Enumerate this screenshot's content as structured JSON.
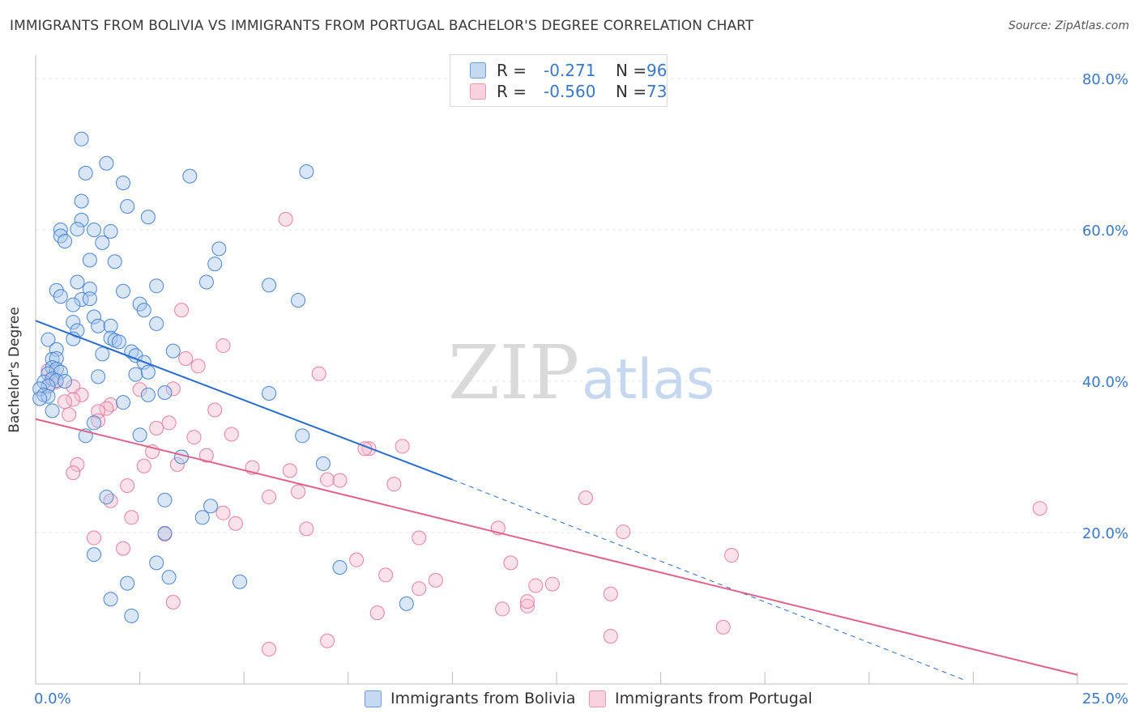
{
  "title": "IMMIGRANTS FROM BOLIVIA VS IMMIGRANTS FROM PORTUGAL BACHELOR'S DEGREE CORRELATION CHART",
  "source": "Source: ZipAtlas.com",
  "watermark": {
    "zip": "ZIP",
    "atlas": "atlas"
  },
  "colors": {
    "bolivia_fill": "#a9c8ef",
    "bolivia_stroke": "#4a86d4",
    "bolivia_line": "#2a6ccc",
    "portugal_fill": "#f6bfd0",
    "portugal_stroke": "#e87fa2",
    "portugal_line": "#e0628c",
    "axis_label": "#3a78c9",
    "grid": "#e4e4e4"
  },
  "legend": {
    "rows": [
      {
        "r_label": "R =",
        "r_value": "-0.271",
        "n_label": "N =",
        "n_value": "96"
      },
      {
        "r_label": "R =",
        "r_value": "-0.560",
        "n_label": "N =",
        "n_value": "73"
      }
    ]
  },
  "chart_data": {
    "type": "scatter",
    "title": "IMMIGRANTS FROM BOLIVIA VS IMMIGRANTS FROM PORTUGAL BACHELOR'S DEGREE CORRELATION CHART",
    "xlabel": "",
    "ylabel": "Bachelor's Degree",
    "xlim": [
      0,
      25
    ],
    "ylim": [
      0,
      80
    ],
    "x_tick_labels": [
      "0.0%",
      "25.0%"
    ],
    "y_ticks": [
      20,
      40,
      60,
      80
    ],
    "y_tick_labels": [
      "20.0%",
      "40.0%",
      "60.0%",
      "80.0%"
    ],
    "grid": true,
    "legend_position": "bottom",
    "series": [
      {
        "name": "Immigrants from Bolivia",
        "r": -0.271,
        "n": 96,
        "trend": {
          "x": [
            0.0,
            10.0
          ],
          "y": [
            48.0,
            27.0
          ],
          "dashed_to": [
            22.3,
            0.5
          ]
        },
        "points": [
          [
            1.1,
            72.0
          ],
          [
            1.7,
            68.8
          ],
          [
            1.2,
            67.5
          ],
          [
            2.1,
            66.2
          ],
          [
            3.7,
            67.1
          ],
          [
            6.5,
            67.7
          ],
          [
            1.1,
            63.8
          ],
          [
            2.2,
            63.1
          ],
          [
            2.7,
            61.7
          ],
          [
            1.1,
            61.3
          ],
          [
            0.6,
            60.0
          ],
          [
            0.6,
            59.2
          ],
          [
            1.0,
            60.1
          ],
          [
            1.4,
            60.0
          ],
          [
            1.8,
            59.8
          ],
          [
            0.7,
            58.5
          ],
          [
            1.6,
            58.3
          ],
          [
            4.4,
            57.5
          ],
          [
            1.3,
            56.0
          ],
          [
            1.9,
            55.8
          ],
          [
            4.3,
            55.5
          ],
          [
            4.1,
            53.1
          ],
          [
            5.6,
            52.7
          ],
          [
            2.9,
            52.6
          ],
          [
            0.5,
            52.0
          ],
          [
            1.0,
            53.1
          ],
          [
            1.3,
            52.2
          ],
          [
            2.1,
            51.9
          ],
          [
            0.6,
            51.2
          ],
          [
            1.1,
            50.8
          ],
          [
            1.3,
            50.9
          ],
          [
            6.3,
            50.7
          ],
          [
            2.5,
            50.2
          ],
          [
            0.9,
            50.1
          ],
          [
            2.6,
            49.4
          ],
          [
            1.4,
            48.5
          ],
          [
            0.9,
            47.8
          ],
          [
            1.5,
            47.3
          ],
          [
            1.8,
            47.3
          ],
          [
            2.9,
            47.6
          ],
          [
            1.0,
            46.7
          ],
          [
            0.3,
            45.5
          ],
          [
            0.9,
            45.6
          ],
          [
            1.8,
            45.7
          ],
          [
            1.9,
            45.4
          ],
          [
            2.0,
            45.2
          ],
          [
            0.5,
            44.2
          ],
          [
            2.3,
            43.9
          ],
          [
            1.6,
            43.6
          ],
          [
            3.3,
            44.0
          ],
          [
            2.4,
            43.4
          ],
          [
            0.4,
            42.9
          ],
          [
            0.5,
            43.0
          ],
          [
            2.6,
            42.5
          ],
          [
            0.4,
            41.8
          ],
          [
            0.5,
            41.6
          ],
          [
            0.3,
            41.0
          ],
          [
            0.6,
            41.2
          ],
          [
            2.4,
            40.9
          ],
          [
            2.7,
            41.2
          ],
          [
            1.5,
            40.6
          ],
          [
            0.2,
            39.9
          ],
          [
            0.4,
            40.3
          ],
          [
            0.5,
            40.1
          ],
          [
            0.7,
            40.0
          ],
          [
            0.3,
            39.4
          ],
          [
            0.1,
            39.0
          ],
          [
            0.2,
            38.2
          ],
          [
            0.3,
            38.0
          ],
          [
            5.6,
            38.4
          ],
          [
            3.1,
            38.5
          ],
          [
            2.7,
            38.2
          ],
          [
            0.1,
            37.7
          ],
          [
            2.1,
            37.2
          ],
          [
            0.4,
            36.1
          ],
          [
            1.4,
            34.5
          ],
          [
            1.2,
            32.8
          ],
          [
            2.5,
            32.9
          ],
          [
            6.4,
            32.8
          ],
          [
            3.5,
            30.0
          ],
          [
            6.9,
            29.1
          ],
          [
            1.7,
            24.7
          ],
          [
            3.1,
            24.3
          ],
          [
            4.2,
            23.5
          ],
          [
            4.0,
            22.0
          ],
          [
            3.1,
            19.9
          ],
          [
            1.4,
            17.1
          ],
          [
            2.9,
            16.0
          ],
          [
            7.3,
            15.4
          ],
          [
            3.2,
            14.1
          ],
          [
            2.2,
            13.3
          ],
          [
            4.9,
            13.5
          ],
          [
            1.8,
            11.2
          ],
          [
            8.9,
            10.6
          ],
          [
            2.3,
            9.0
          ]
        ]
      },
      {
        "name": "Immigrants from Portugal",
        "r": -0.56,
        "n": 73,
        "trend": {
          "x": [
            0.0,
            25.0
          ],
          "y": [
            35.0,
            1.2
          ]
        },
        "points": [
          [
            6.0,
            61.4
          ],
          [
            3.5,
            49.4
          ],
          [
            4.5,
            44.7
          ],
          [
            3.6,
            43.0
          ],
          [
            3.9,
            42.0
          ],
          [
            6.8,
            41.0
          ],
          [
            0.3,
            41.4
          ],
          [
            0.4,
            40.5
          ],
          [
            0.5,
            39.9
          ],
          [
            0.3,
            39.3
          ],
          [
            0.9,
            39.3
          ],
          [
            3.3,
            39.0
          ],
          [
            2.5,
            38.9
          ],
          [
            1.1,
            38.2
          ],
          [
            0.9,
            37.6
          ],
          [
            0.7,
            37.3
          ],
          [
            1.8,
            36.9
          ],
          [
            1.7,
            36.4
          ],
          [
            4.3,
            36.2
          ],
          [
            1.5,
            36.0
          ],
          [
            0.8,
            35.6
          ],
          [
            1.5,
            34.8
          ],
          [
            3.2,
            34.5
          ],
          [
            2.9,
            33.8
          ],
          [
            4.7,
            33.0
          ],
          [
            3.8,
            32.6
          ],
          [
            8.8,
            31.4
          ],
          [
            8.0,
            31.1
          ],
          [
            7.9,
            31.1
          ],
          [
            2.8,
            30.7
          ],
          [
            4.1,
            30.2
          ],
          [
            3.4,
            29.0
          ],
          [
            2.6,
            28.8
          ],
          [
            1.0,
            29.0
          ],
          [
            5.2,
            28.6
          ],
          [
            6.1,
            28.2
          ],
          [
            0.9,
            27.9
          ],
          [
            7.0,
            27.0
          ],
          [
            7.3,
            26.9
          ],
          [
            8.6,
            26.4
          ],
          [
            2.2,
            26.2
          ],
          [
            6.3,
            25.4
          ],
          [
            5.6,
            24.7
          ],
          [
            13.2,
            24.6
          ],
          [
            1.8,
            24.2
          ],
          [
            24.1,
            23.2
          ],
          [
            4.5,
            22.6
          ],
          [
            2.3,
            22.0
          ],
          [
            4.8,
            21.2
          ],
          [
            6.5,
            20.5
          ],
          [
            11.1,
            20.6
          ],
          [
            14.1,
            20.1
          ],
          [
            3.1,
            19.8
          ],
          [
            1.4,
            19.3
          ],
          [
            9.2,
            19.3
          ],
          [
            2.1,
            17.9
          ],
          [
            16.7,
            17.0
          ],
          [
            7.7,
            16.4
          ],
          [
            11.4,
            16.0
          ],
          [
            8.4,
            14.4
          ],
          [
            9.6,
            13.7
          ],
          [
            12.0,
            13.0
          ],
          [
            12.4,
            13.2
          ],
          [
            9.2,
            12.6
          ],
          [
            13.8,
            11.9
          ],
          [
            3.3,
            10.8
          ],
          [
            11.8,
            10.3
          ],
          [
            11.8,
            10.9
          ],
          [
            8.2,
            9.4
          ],
          [
            11.2,
            9.9
          ],
          [
            16.5,
            7.5
          ],
          [
            7.0,
            5.7
          ],
          [
            13.8,
            6.3
          ],
          [
            5.6,
            4.6
          ]
        ]
      }
    ]
  }
}
